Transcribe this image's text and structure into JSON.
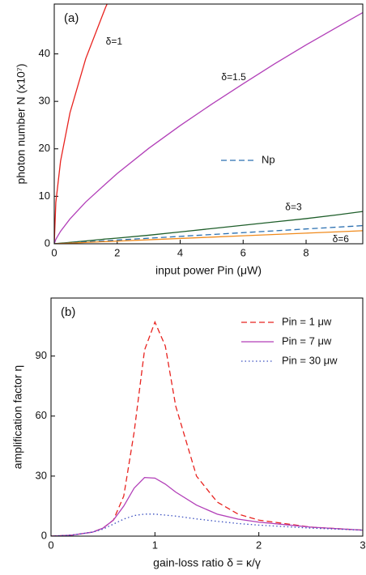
{
  "chart_data": [
    {
      "type": "line",
      "title": "(a)",
      "xlabel": "input power Pin (μW)",
      "ylabel": "photon number  N (x10⁷)",
      "xlim": [
        0,
        9.8
      ],
      "ylim": [
        0,
        50.5
      ],
      "xticks": [
        0,
        2,
        4,
        6,
        8
      ],
      "yticks": [
        0,
        10,
        20,
        30,
        40
      ],
      "legend": "center right",
      "x": [
        0,
        0.05,
        0.2,
        0.5,
        1,
        1.63,
        2,
        3,
        4,
        5,
        6,
        7,
        8,
        9,
        9.8
      ],
      "series": [
        {
          "name": "δ=1",
          "color": "#e8231f",
          "dash": "solid",
          "values": [
            0,
            8.7,
            17.4,
            27.6,
            39,
            49.8,
            55.2,
            null,
            null,
            null,
            null,
            null,
            null,
            null,
            null
          ]
        },
        {
          "name": "δ=1.5",
          "color": "#b23fb8",
          "dash": "solid",
          "values": [
            0,
            0.93,
            2.63,
            5.23,
            8.8,
            12.6,
            14.8,
            20.1,
            24.9,
            29.4,
            33.7,
            37.9,
            41.9,
            45.7,
            48.7
          ]
        },
        {
          "name": "δ=3",
          "color": "#1e5e2a",
          "dash": "solid",
          "values": [
            0,
            0.03,
            0.12,
            0.3,
            0.6,
            1.0,
            1.2,
            1.8,
            2.5,
            3.2,
            3.9,
            4.6,
            5.3,
            6.1,
            6.8
          ]
        },
        {
          "name": "Np",
          "color": "#2a6fb0",
          "dash": "dashed",
          "legend": true,
          "values": [
            0,
            0.02,
            0.08,
            0.2,
            0.39,
            0.64,
            0.78,
            1.17,
            1.56,
            1.95,
            2.34,
            2.73,
            3.12,
            3.51,
            3.82
          ]
        },
        {
          "name": "δ=6",
          "color": "#f08a1c",
          "dash": "solid",
          "values": [
            0,
            0.01,
            0.06,
            0.14,
            0.28,
            0.46,
            0.56,
            0.84,
            1.12,
            1.4,
            1.68,
            1.96,
            2.24,
            2.52,
            2.75
          ]
        }
      ],
      "annotations": [
        {
          "text": "δ=1",
          "x": 1.9,
          "y": 42.5
        },
        {
          "text": "δ=1.5",
          "x": 5.7,
          "y": 35
        },
        {
          "text": "δ=3",
          "x": 7.6,
          "y": 7.6
        },
        {
          "text": "δ=6",
          "x": 9.1,
          "y": 0.9
        }
      ]
    },
    {
      "type": "line",
      "title": "(b)",
      "xlabel": "gain-loss ratio  δ = κ/γ",
      "ylabel": "amplification factor  η",
      "xlim": [
        0,
        3
      ],
      "ylim": [
        0,
        119
      ],
      "xticks": [
        0,
        1,
        2,
        3
      ],
      "yticks": [
        0,
        30,
        60,
        90
      ],
      "legend": "upper right",
      "x": [
        0,
        0.2,
        0.4,
        0.5,
        0.6,
        0.7,
        0.8,
        0.9,
        1.0,
        1.1,
        1.2,
        1.4,
        1.6,
        1.8,
        2.0,
        2.5,
        3.0
      ],
      "series": [
        {
          "name": "Pin = 1 μw",
          "color": "#e8231f",
          "dash": "dashed",
          "legend": true,
          "values": [
            0,
            0.5,
            2,
            4,
            8,
            20,
            52,
            93,
            107,
            95,
            65,
            30,
            17,
            11,
            8,
            4.5,
            3
          ]
        },
        {
          "name": "Pin = 7 μw",
          "color": "#b23fb8",
          "dash": "solid",
          "legend": true,
          "values": [
            0,
            0.5,
            2,
            4,
            8,
            15,
            24,
            29.3,
            29,
            26,
            22,
            15.5,
            11,
            8.5,
            7,
            4.5,
            3
          ]
        },
        {
          "name": "Pin = 30 μw",
          "color": "#3a4fc0",
          "dash": "dotted",
          "legend": true,
          "values": [
            0,
            0.5,
            2,
            3.5,
            6,
            8.5,
            10.3,
            11,
            11,
            10.5,
            10,
            8.6,
            7.4,
            6.3,
            5.5,
            4,
            3
          ]
        }
      ]
    }
  ]
}
